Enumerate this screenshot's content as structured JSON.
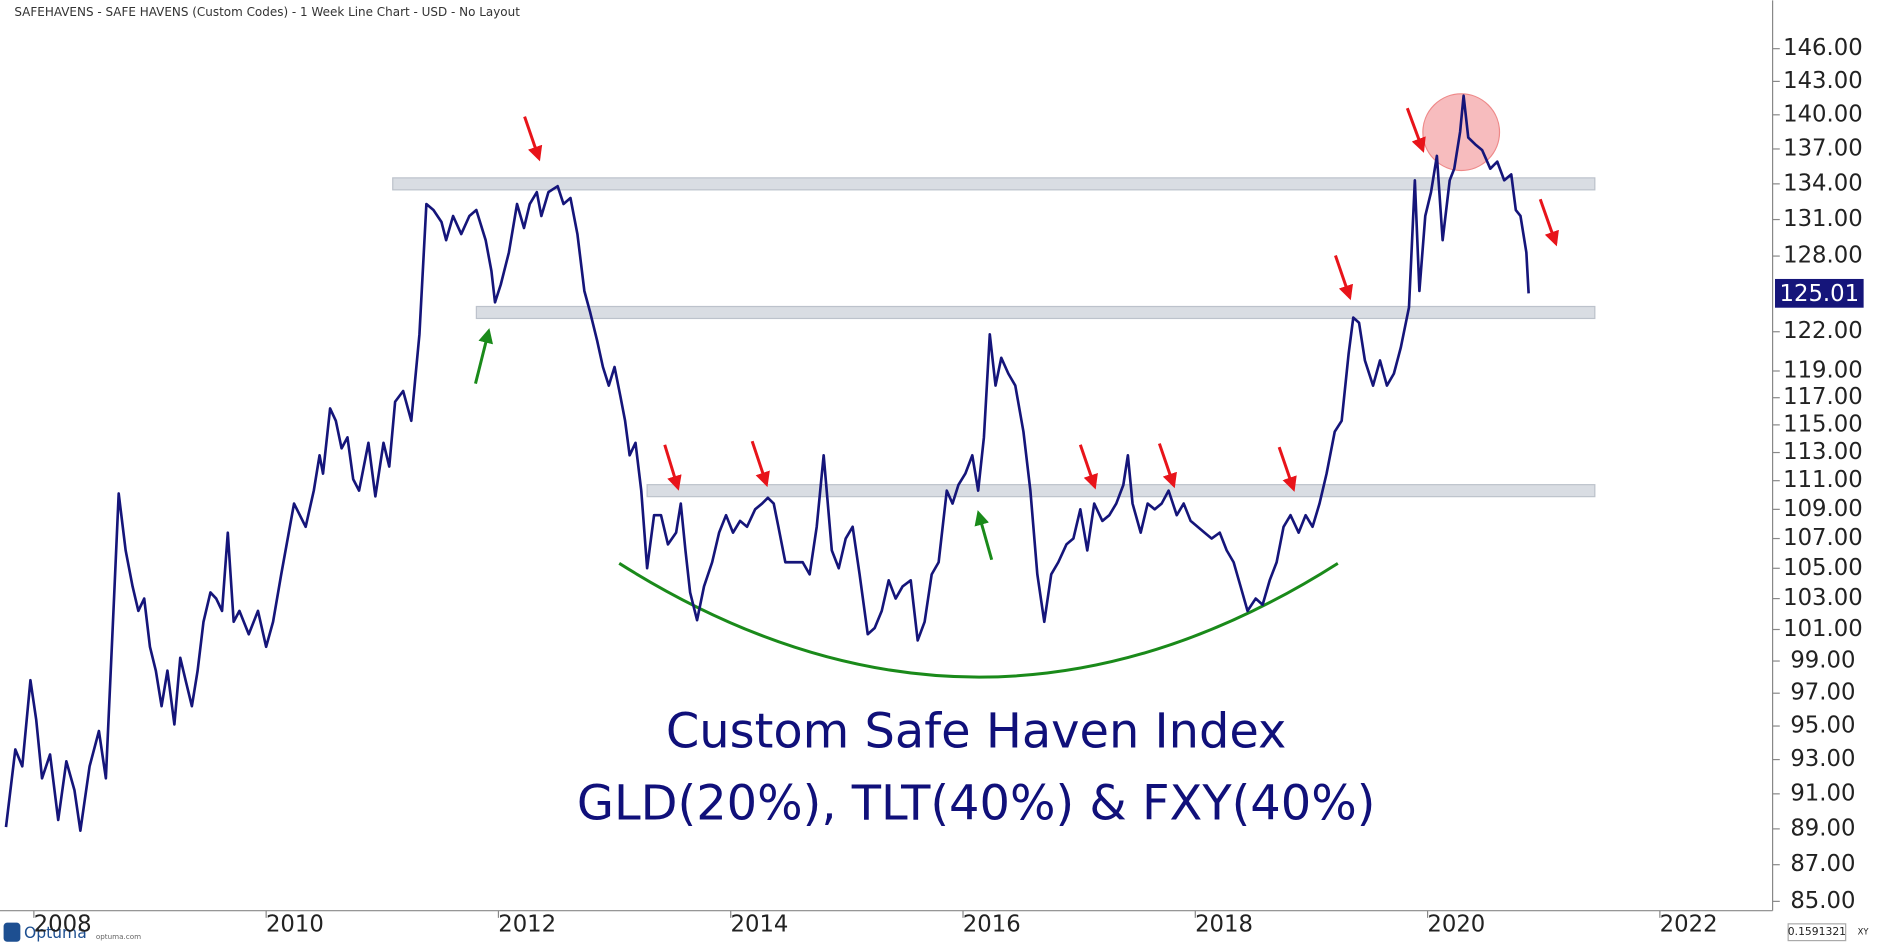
{
  "chart_data": {
    "type": "line",
    "title": "SAFEHAVENS - SAFE HAVENS (Custom Codes) - 1 Week Line Chart - USD - No Layout",
    "annotations": [
      "Custom Safe Haven Index",
      "GLD(20%), TLT(40%) & FXY(40%)"
    ],
    "color": "#15157a",
    "log_scale": true,
    "grid": false,
    "xlim": [
      2007.76,
      2022.95
    ],
    "xticks": [
      2008,
      2010,
      2012,
      2014,
      2016,
      2018,
      2020,
      2022
    ],
    "ylim": [
      84.5,
      149.4
    ],
    "yticks": [
      {
        "value": 85,
        "label": "85.00"
      },
      {
        "value": 87,
        "label": "87.00"
      },
      {
        "value": 89,
        "label": "89.00"
      },
      {
        "value": 91,
        "label": "91.00"
      },
      {
        "value": 93,
        "label": "93.00"
      },
      {
        "value": 95,
        "label": "95.00"
      },
      {
        "value": 97,
        "label": "97.00"
      },
      {
        "value": 99,
        "label": "99.00"
      },
      {
        "value": 101,
        "label": "101.00"
      },
      {
        "value": 103,
        "label": "103.00"
      },
      {
        "value": 105,
        "label": "105.00"
      },
      {
        "value": 107,
        "label": "107.00"
      },
      {
        "value": 109,
        "label": "109.00"
      },
      {
        "value": 111,
        "label": "111.00"
      },
      {
        "value": 113,
        "label": "113.00"
      },
      {
        "value": 115,
        "label": "115.00"
      },
      {
        "value": 117,
        "label": "117.00"
      },
      {
        "value": 119,
        "label": "119.00"
      },
      {
        "value": 122,
        "label": "122.00"
      },
      {
        "value": 128,
        "label": "128.00"
      },
      {
        "value": 131,
        "label": "131.00"
      },
      {
        "value": 134,
        "label": "134.00"
      },
      {
        "value": 137,
        "label": "137.00"
      },
      {
        "value": 140,
        "label": "140.00"
      },
      {
        "value": 143,
        "label": "143.00"
      },
      {
        "value": 146,
        "label": "146.00"
      }
    ],
    "bands": [
      {
        "value": 134,
        "x": [
          2011.09,
          2021.44
        ]
      },
      {
        "value": 123.5,
        "x": [
          2011.81,
          2021.44
        ]
      },
      {
        "value": 110.3,
        "x": [
          2013.28,
          2021.44
        ]
      }
    ],
    "x": [
      2007.76,
      2007.84,
      2007.9,
      2007.97,
      2008.02,
      2008.07,
      2008.14,
      2008.21,
      2008.28,
      2008.35,
      2008.4,
      2008.48,
      2008.56,
      2008.62,
      2008.69,
      2008.73,
      2008.79,
      2008.85,
      2008.9,
      2008.95,
      2009.0,
      2009.05,
      2009.1,
      2009.15,
      2009.21,
      2009.26,
      2009.31,
      2009.36,
      2009.41,
      2009.46,
      2009.52,
      2009.57,
      2009.62,
      2009.67,
      2009.72,
      2009.77,
      2009.85,
      2009.93,
      2010.0,
      2010.06,
      2010.13,
      2010.24,
      2010.34,
      2010.41,
      2010.46,
      2010.49,
      2010.55,
      2010.6,
      2010.65,
      2010.7,
      2010.75,
      2010.8,
      2010.88,
      2010.94,
      2011.01,
      2011.06,
      2011.11,
      2011.18,
      2011.25,
      2011.32,
      2011.38,
      2011.44,
      2011.51,
      2011.55,
      2011.61,
      2011.68,
      2011.75,
      2011.81,
      2011.89,
      2011.94,
      2011.97,
      2012.02,
      2012.09,
      2012.16,
      2012.22,
      2012.27,
      2012.33,
      2012.37,
      2012.43,
      2012.51,
      2012.56,
      2012.62,
      2012.68,
      2012.74,
      2012.79,
      2012.85,
      2012.9,
      2012.95,
      2013.0,
      2013.05,
      2013.09,
      2013.13,
      2013.18,
      2013.23,
      2013.28,
      2013.34,
      2013.4,
      2013.46,
      2013.53,
      2013.57,
      2013.61,
      2013.65,
      2013.71,
      2013.77,
      2013.84,
      2013.9,
      2013.96,
      2014.02,
      2014.08,
      2014.14,
      2014.21,
      2014.27,
      2014.32,
      2014.37,
      2014.41,
      2014.47,
      2014.55,
      2014.62,
      2014.68,
      2014.74,
      2014.8,
      2014.87,
      2014.93,
      2014.99,
      2015.05,
      2015.11,
      2015.18,
      2015.24,
      2015.3,
      2015.36,
      2015.42,
      2015.48,
      2015.55,
      2015.61,
      2015.67,
      2015.73,
      2015.79,
      2015.86,
      2015.91,
      2015.96,
      2016.02,
      2016.08,
      2016.13,
      2016.18,
      2016.23,
      2016.28,
      2016.33,
      2016.39,
      2016.45,
      2016.52,
      2016.58,
      2016.64,
      2016.7,
      2016.76,
      2016.82,
      2016.89,
      2016.95,
      2017.01,
      2017.07,
      2017.13,
      2017.2,
      2017.26,
      2017.32,
      2017.38,
      2017.42,
      2017.46,
      2017.53,
      2017.59,
      2017.65,
      2017.71,
      2017.77,
      2017.84,
      2017.9,
      2017.96,
      2018.02,
      2018.08,
      2018.14,
      2018.21,
      2018.27,
      2018.33,
      2018.39,
      2018.45,
      2018.52,
      2018.58,
      2018.64,
      2018.7,
      2018.76,
      2018.82,
      2018.89,
      2018.95,
      2019.01,
      2019.07,
      2019.13,
      2019.2,
      2019.26,
      2019.32,
      2019.36,
      2019.41,
      2019.46,
      2019.53,
      2019.59,
      2019.65,
      2019.71,
      2019.77,
      2019.84,
      2019.89,
      2019.93,
      2019.98,
      2020.03,
      2020.08,
      2020.13,
      2020.19,
      2020.23,
      2020.28,
      2020.31,
      2020.35,
      2020.41,
      2020.47,
      2020.54,
      2020.6,
      2020.66,
      2020.72,
      2020.76,
      2020.8,
      2020.85,
      2020.87
    ],
    "values": [
      89.1,
      93.6,
      92.6,
      97.8,
      95.4,
      91.9,
      93.3,
      89.5,
      92.9,
      91.2,
      88.9,
      92.6,
      94.7,
      91.9,
      103,
      110.1,
      106.2,
      103.8,
      102.2,
      103,
      99.9,
      98.4,
      96.2,
      98.4,
      95.1,
      99.2,
      97.7,
      96.2,
      98.4,
      101.5,
      103.4,
      103,
      102.2,
      107.4,
      101.5,
      102.2,
      100.7,
      102.2,
      99.9,
      101.5,
      104.6,
      109.4,
      107.8,
      110.3,
      112.8,
      111.5,
      116.2,
      115.3,
      113.3,
      114.1,
      111.1,
      110.3,
      113.7,
      109.9,
      113.7,
      112,
      116.7,
      117.5,
      115.3,
      121.8,
      132.3,
      131.8,
      130.8,
      129.3,
      131.3,
      129.8,
      131.3,
      131.8,
      129.3,
      126.8,
      124.3,
      125.7,
      128.3,
      132.3,
      130.3,
      132.3,
      133.3,
      131.3,
      133.3,
      133.8,
      132.3,
      132.8,
      129.8,
      125.2,
      123.5,
      121.3,
      119.3,
      117.9,
      119.3,
      117.1,
      115.3,
      112.8,
      113.7,
      110.3,
      105,
      108.6,
      108.6,
      106.6,
      107.4,
      109.4,
      106.2,
      103.4,
      101.6,
      103.8,
      105.4,
      107.4,
      108.6,
      107.4,
      108.2,
      107.8,
      109,
      109.4,
      109.8,
      109.4,
      107.8,
      105.4,
      105.4,
      105.4,
      104.6,
      107.8,
      112.8,
      106.2,
      105,
      107,
      107.8,
      104.6,
      100.7,
      101.1,
      102.2,
      104.2,
      103,
      103.8,
      104.2,
      100.3,
      101.5,
      104.6,
      105.4,
      110.3,
      109.4,
      110.7,
      111.5,
      112.8,
      110.3,
      114.1,
      121.8,
      117.9,
      120,
      118.8,
      117.9,
      114.5,
      110.3,
      104.6,
      101.5,
      104.6,
      105.4,
      106.6,
      107,
      109,
      106.2,
      109.4,
      108.2,
      108.6,
      109.4,
      110.7,
      112.8,
      109.4,
      107.4,
      109.4,
      109,
      109.4,
      110.3,
      108.6,
      109.4,
      108.2,
      107.8,
      107.4,
      107,
      107.4,
      106.2,
      105.4,
      103.8,
      102.2,
      103,
      102.6,
      104.2,
      105.4,
      107.8,
      108.6,
      107.4,
      108.6,
      107.8,
      109.4,
      111.5,
      114.5,
      115.3,
      120.3,
      123.1,
      122.7,
      119.8,
      117.9,
      119.8,
      117.9,
      118.8,
      120.8,
      123.9,
      134.3,
      125.2,
      131.3,
      133.3,
      136.4,
      129.3,
      134.3,
      135.3,
      138.5,
      141.7,
      138,
      137.4,
      136.9,
      135.3,
      135.9,
      134.3,
      134.8,
      131.8,
      131.3,
      128.3,
      125.01
    ]
  },
  "ui": {
    "logo": "Optuma",
    "site": "optuma.com",
    "scale": "0.1591321",
    "mode": "XY"
  }
}
